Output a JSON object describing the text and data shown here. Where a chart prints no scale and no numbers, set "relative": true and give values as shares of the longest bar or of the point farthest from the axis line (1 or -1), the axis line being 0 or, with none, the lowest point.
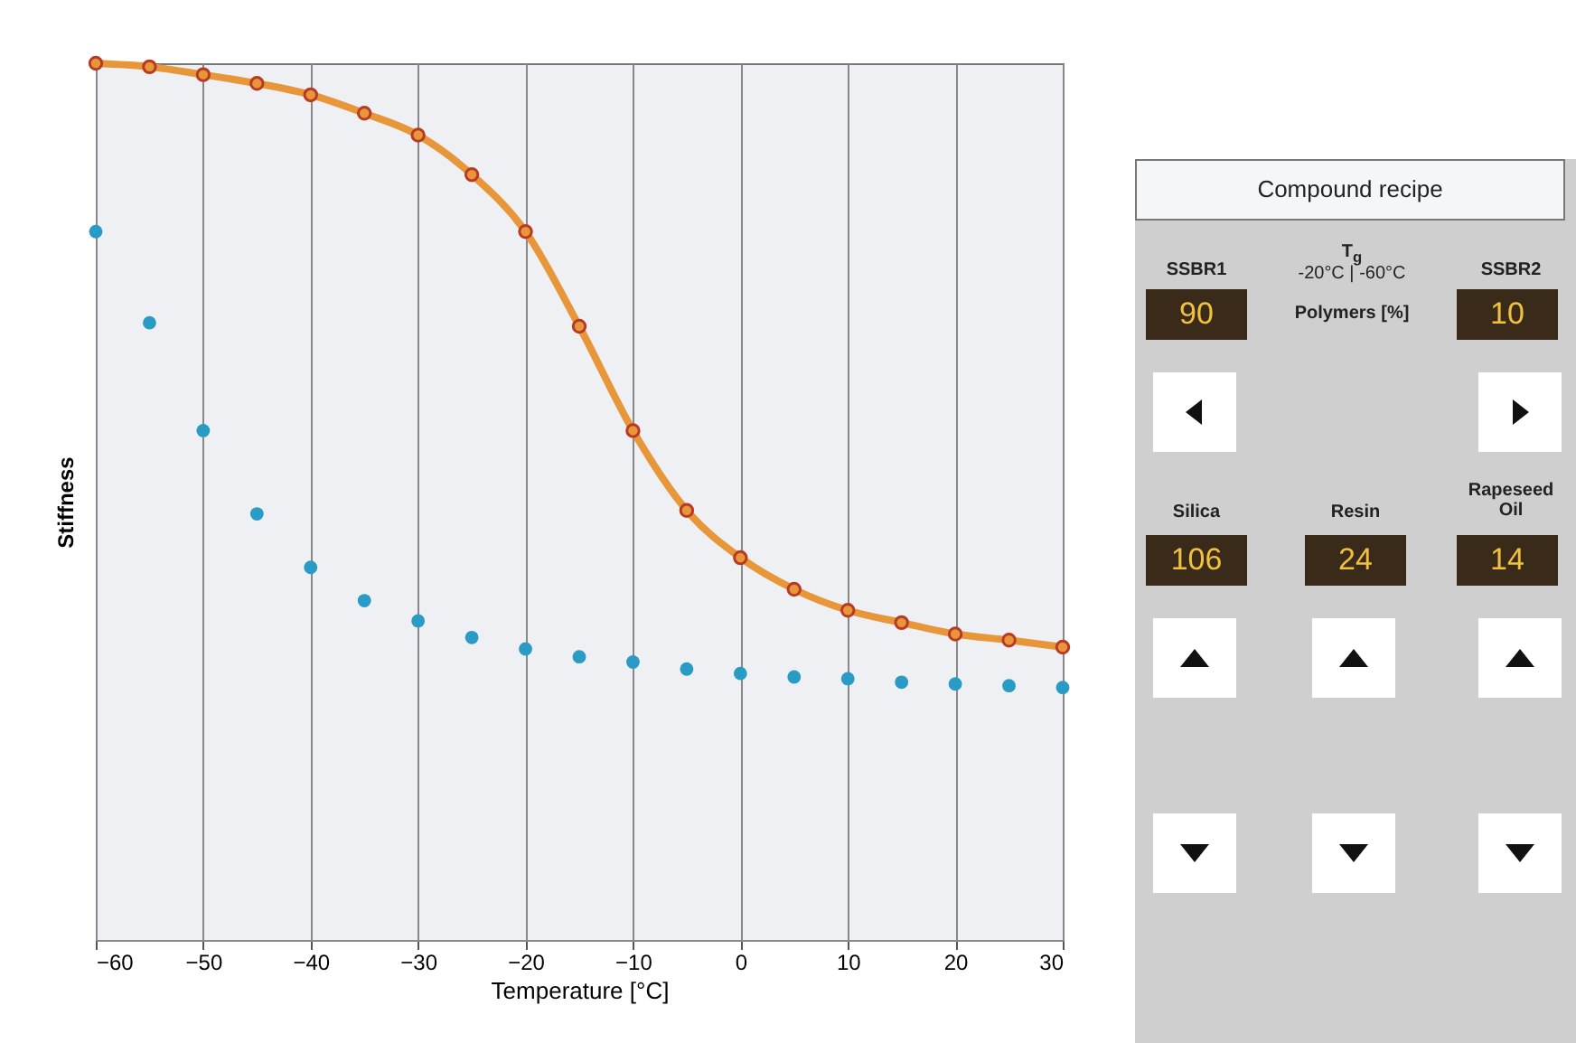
{
  "chart_data": {
    "type": "line",
    "xlabel": "Temperature [°C]",
    "ylabel": "Stiffness",
    "relative": true,
    "x": [
      -60,
      -55,
      -50,
      -45,
      -40,
      -35,
      -30,
      -25,
      -20,
      -15,
      -10,
      -5,
      0,
      5,
      10,
      15,
      20,
      25,
      30
    ],
    "xlim": [
      -60,
      30
    ],
    "xticks": [
      -60,
      -50,
      -40,
      -30,
      -20,
      -10,
      0,
      10,
      20,
      30
    ],
    "grid": "x",
    "marker": "circle",
    "line_style": "solid",
    "series": [
      {
        "color": "#e8963a",
        "values": [
          1.0,
          0.996,
          0.987,
          0.977,
          0.964,
          0.943,
          0.918,
          0.873,
          0.808,
          0.7,
          0.581,
          0.49,
          0.436,
          0.4,
          0.376,
          0.362,
          0.349,
          0.342,
          0.334
        ]
      },
      {
        "type": "scatter",
        "color": "#2a9bc4",
        "values": [
          0.808,
          0.704,
          0.581,
          0.486,
          0.425,
          0.387,
          0.364,
          0.345,
          0.332,
          0.323,
          0.317,
          0.309,
          0.304,
          0.3,
          0.298,
          0.294,
          0.292,
          0.29,
          0.288
        ]
      }
    ],
    "annotations": [
      "Compound recipe",
      "SSBR1",
      "T$_{g}$",
      "-20°C | -60°C",
      "SSBR2",
      "90",
      "Polymers [%]",
      "10",
      "Silica",
      "Resin",
      "Rapeseed Oil",
      "106",
      "24",
      "14"
    ]
  }
}
